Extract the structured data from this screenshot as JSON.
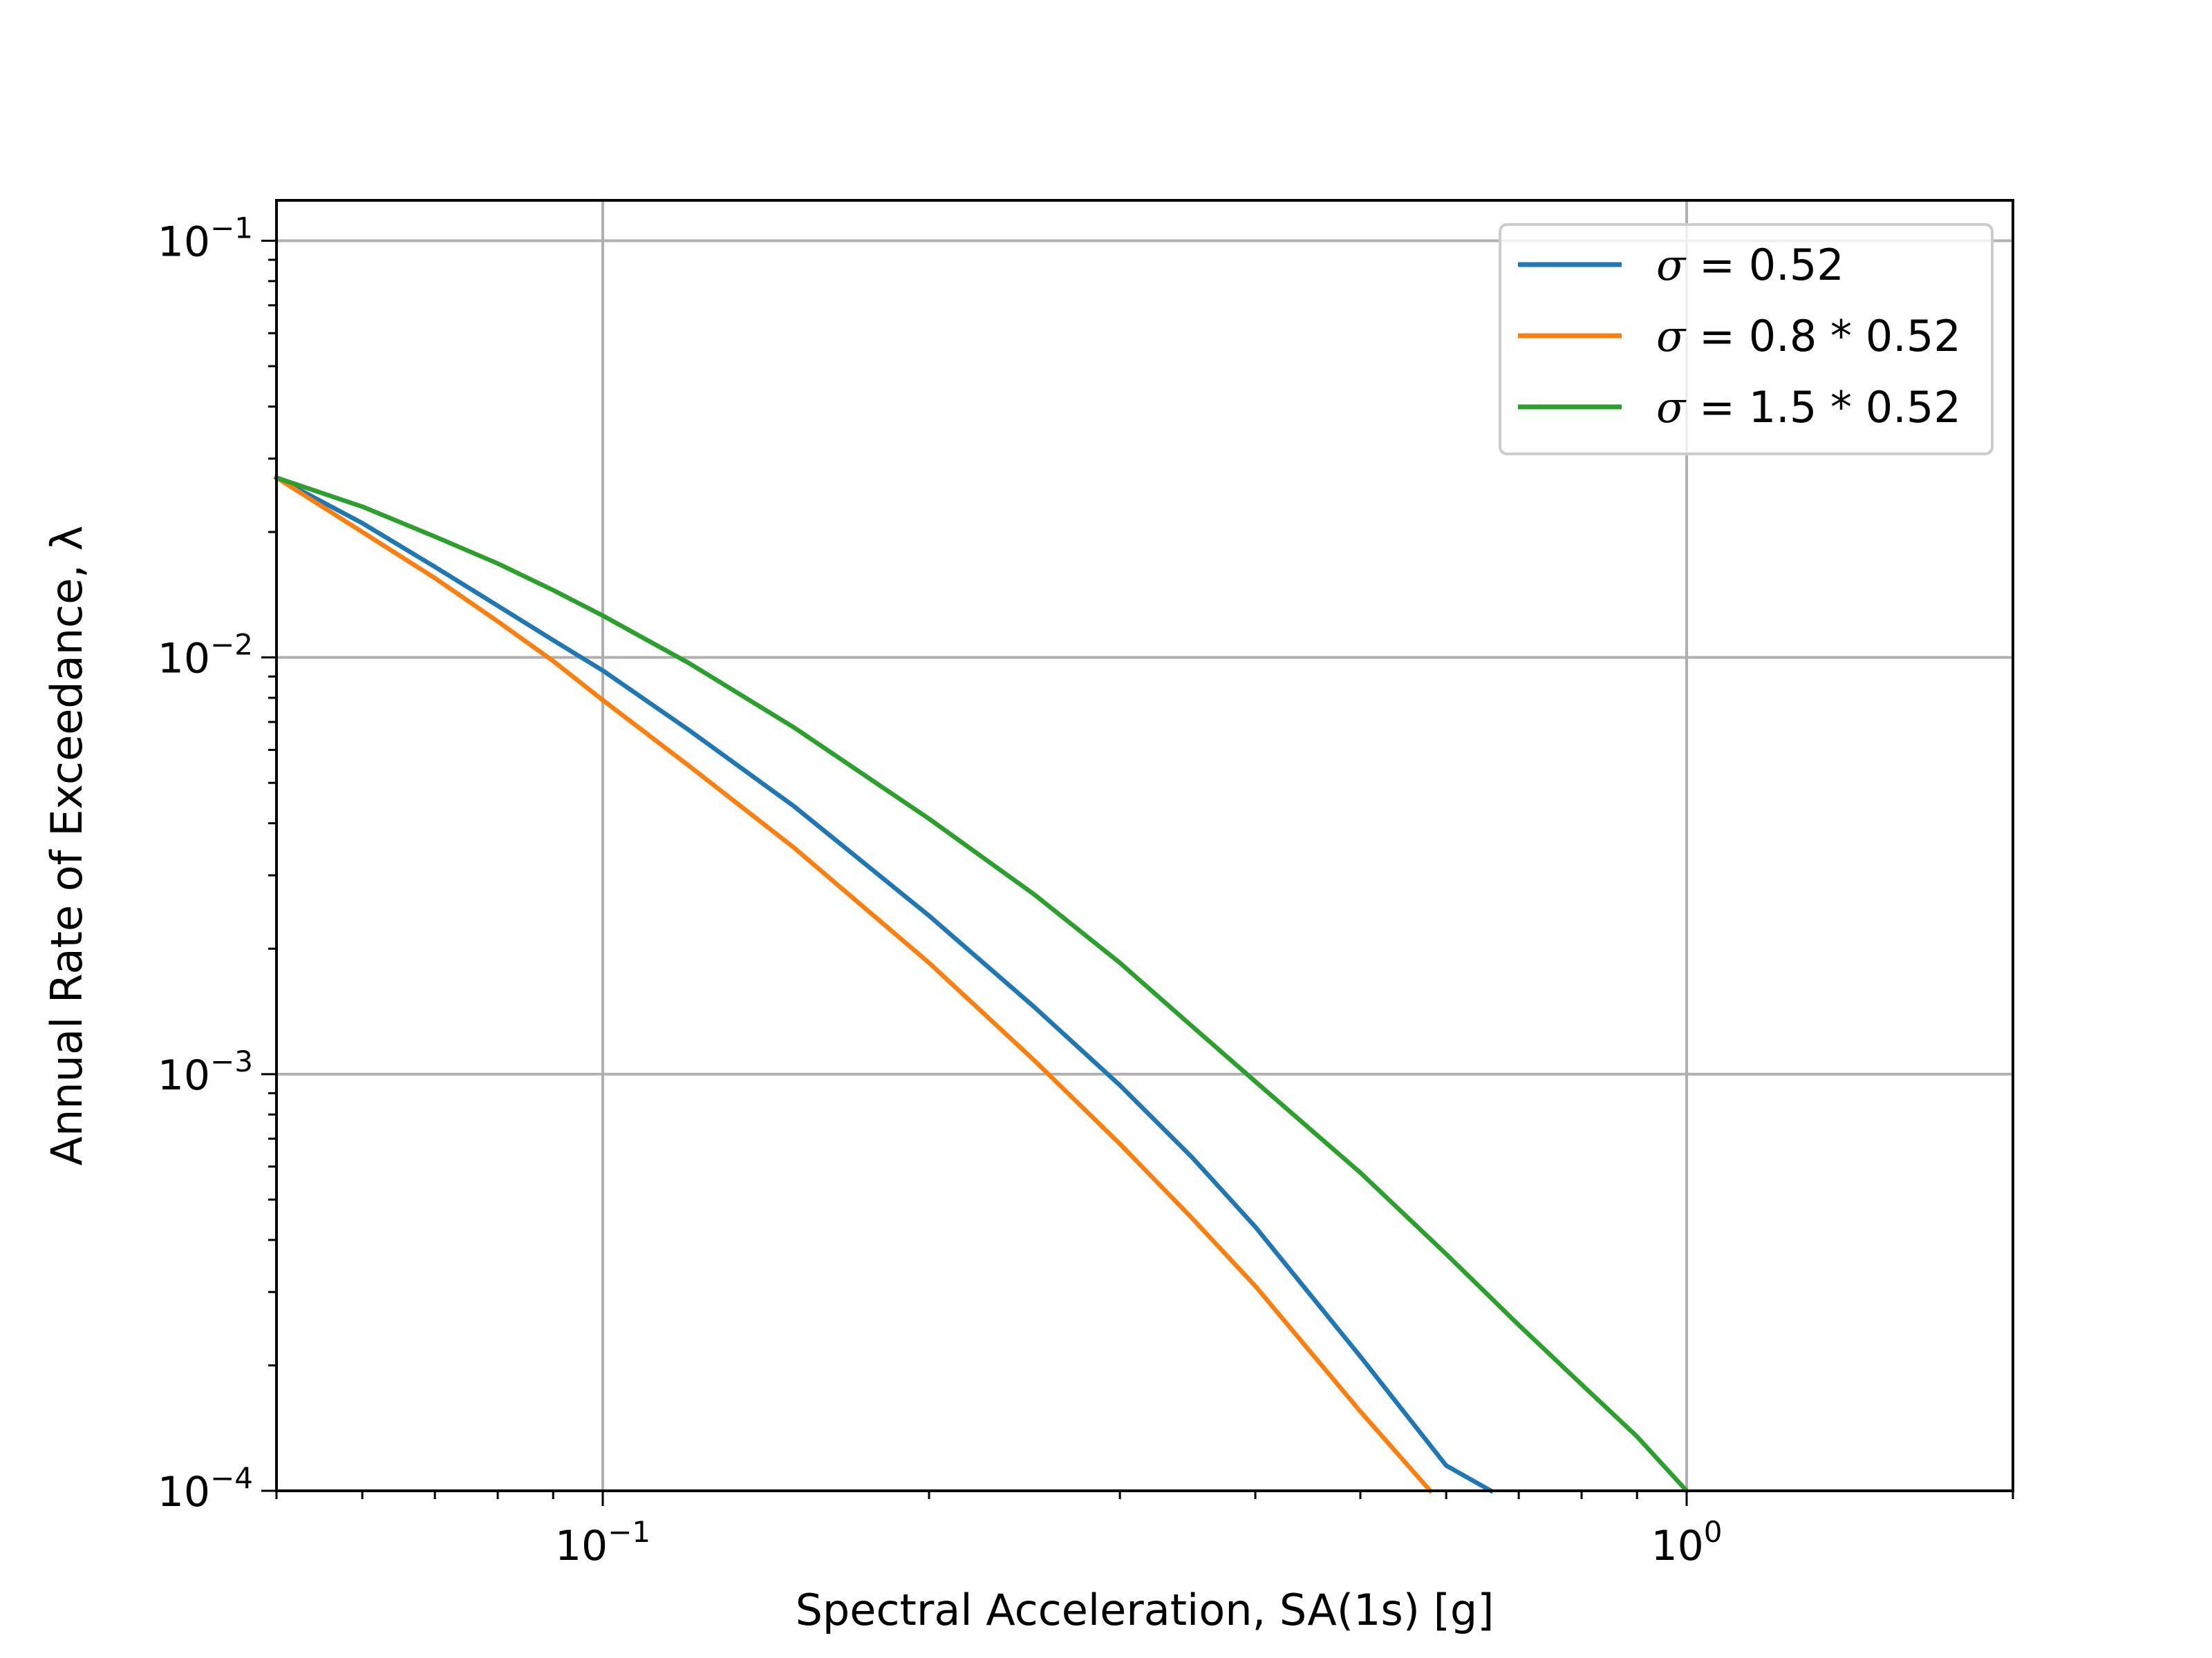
{
  "chart_data": {
    "type": "line",
    "xlabel": "Spectral Acceleration, SA(1s) [g]",
    "ylabel": "Annual Rate of Exceedance, λ",
    "xscale": "log",
    "yscale": "log",
    "xlim": [
      0.05,
      2.0
    ],
    "ylim": [
      0.0001,
      0.125
    ],
    "grid": true,
    "legend_position": "top-right",
    "x_ticks": [
      {
        "base": "10",
        "exp": "−1",
        "value": 0.1
      },
      {
        "base": "10",
        "exp": "0",
        "value": 1.0
      }
    ],
    "y_ticks": [
      {
        "base": "10",
        "exp": "−1",
        "value": 0.1
      },
      {
        "base": "10",
        "exp": "−2",
        "value": 0.01
      },
      {
        "base": "10",
        "exp": "−3",
        "value": 0.001
      },
      {
        "base": "10",
        "exp": "−4",
        "value": 0.0001
      }
    ],
    "series": [
      {
        "label_prefix": "σ",
        "label_value": "0.52",
        "color": "#1f77b4",
        "x": [
          0.05,
          0.06,
          0.07,
          0.08,
          0.09,
          0.1,
          0.12,
          0.15,
          0.2,
          0.25,
          0.3,
          0.35,
          0.4,
          0.5,
          0.6,
          0.66
        ],
        "y": [
          0.027,
          0.021,
          0.0165,
          0.0133,
          0.011,
          0.0093,
          0.0067,
          0.0044,
          0.0024,
          0.00145,
          0.00094,
          0.00063,
          0.00043,
          0.00021,
          0.000115,
          0.0001
        ]
      },
      {
        "label_prefix": "σ",
        "label_value": "0.8 * 0.52",
        "color": "#ff7f0e",
        "x": [
          0.05,
          0.06,
          0.07,
          0.08,
          0.09,
          0.1,
          0.12,
          0.15,
          0.2,
          0.25,
          0.3,
          0.35,
          0.4,
          0.5,
          0.58
        ],
        "y": [
          0.027,
          0.02,
          0.0155,
          0.0122,
          0.0098,
          0.0079,
          0.0055,
          0.0035,
          0.00185,
          0.00108,
          0.00068,
          0.00045,
          0.00031,
          0.000155,
          0.0001
        ]
      },
      {
        "label_prefix": "σ",
        "label_value": "1.5 * 0.52",
        "color": "#2ca02c",
        "x": [
          0.05,
          0.06,
          0.07,
          0.08,
          0.09,
          0.1,
          0.12,
          0.15,
          0.2,
          0.25,
          0.3,
          0.35,
          0.4,
          0.5,
          0.6,
          0.7,
          0.8,
          0.9,
          1.0
        ],
        "y": [
          0.027,
          0.023,
          0.0195,
          0.0168,
          0.0145,
          0.0126,
          0.0097,
          0.0068,
          0.0041,
          0.0027,
          0.00185,
          0.0013,
          0.00096,
          0.00058,
          0.00037,
          0.00025,
          0.00018,
          0.000135,
          0.0001
        ]
      }
    ]
  }
}
